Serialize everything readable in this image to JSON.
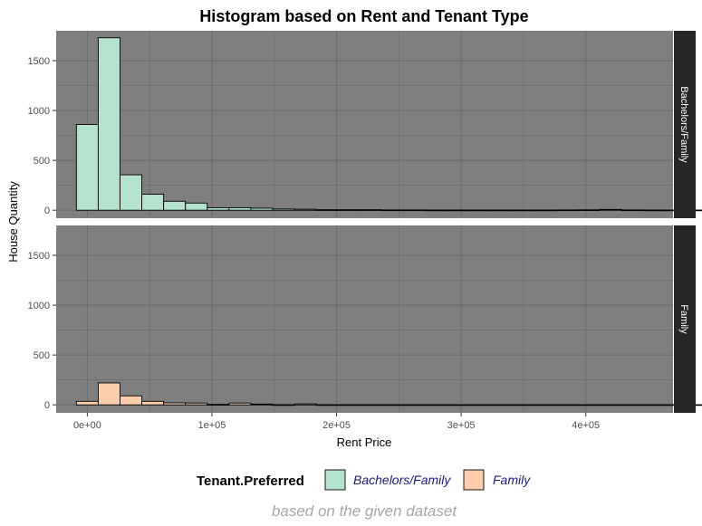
{
  "chart_data": {
    "type": "bar",
    "subtype": "faceted-histogram",
    "title": "Histogram based on Rent and Tenant Type",
    "xlabel": "Rent Price",
    "ylabel": "House Quantity",
    "caption": "based on the given dataset",
    "xlim": [
      -25000,
      470000
    ],
    "ylim": [
      -80,
      1800
    ],
    "bin_width": 17500,
    "bin_start": -8750,
    "x_ticks": [
      0,
      100000,
      200000,
      300000,
      400000
    ],
    "x_tick_labels": [
      "0e+00",
      "1e+05",
      "2e+05",
      "3e+05",
      "4e+05"
    ],
    "y_ticks": [
      0,
      500,
      1000,
      1500
    ],
    "y_tick_labels": [
      "0",
      "500",
      "1000",
      "1500"
    ],
    "grid": true,
    "panel_background": "#7f7f7f",
    "grid_color": "#6b6b6b",
    "strip_background": "#262626",
    "legend_position": "bottom",
    "legend_title": "Tenant.Preferred",
    "series": [
      {
        "name": "Bachelors/Family",
        "color": "#b3e2cd",
        "values": [
          860,
          1730,
          355,
          160,
          90,
          72,
          25,
          25,
          20,
          12,
          10,
          5,
          5,
          5,
          3,
          3,
          2,
          2,
          2,
          2,
          2,
          2,
          3,
          4,
          8,
          3,
          2,
          2,
          2,
          2
        ]
      },
      {
        "name": "Family",
        "color": "#fdcdac",
        "values": [
          35,
          220,
          90,
          35,
          20,
          18,
          5,
          18,
          8,
          2,
          10,
          2,
          2,
          2,
          2,
          2,
          2,
          2,
          2,
          2,
          2,
          2,
          2,
          2,
          2,
          2,
          2,
          2,
          2,
          2
        ]
      }
    ]
  }
}
